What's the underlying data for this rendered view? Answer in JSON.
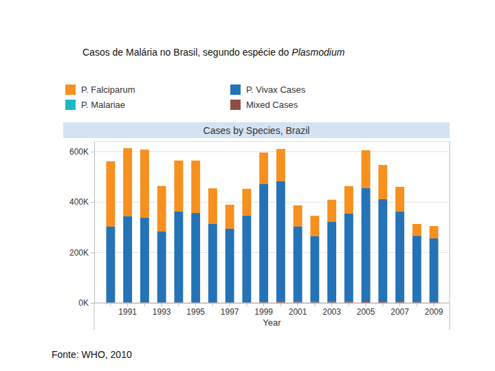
{
  "chart_data": {
    "type": "bar",
    "title": "Casos de Malária no Brasil, segundo espécie do Plasmodium",
    "subtitle": "Cases by Species, Brazil",
    "x_label": "Year",
    "annotations": [
      "Fonte: WHO, 2010"
    ],
    "categories": [
      null,
      "1991",
      null,
      "1993",
      null,
      "1995",
      null,
      "1997",
      null,
      "1999",
      null,
      "2001",
      null,
      "2003",
      null,
      "2005",
      null,
      "2007",
      null,
      "2009"
    ],
    "series": [
      {
        "name": "P. Falciparum",
        "color": "#f7901e",
        "values": [
          259000,
          270000,
          270000,
          180000,
          202000,
          208000,
          141000,
          95000,
          107000,
          125000,
          128000,
          84000,
          81000,
          87000,
          109000,
          150000,
          136000,
          98000,
          47000,
          49000
        ]
      },
      {
        "name": "P. Vivax Cases",
        "color": "#2473b6",
        "values": [
          301000,
          342000,
          336000,
          282000,
          361000,
          355000,
          312000,
          293000,
          344000,
          468000,
          478000,
          299000,
          261000,
          318000,
          350000,
          450000,
          406000,
          358000,
          263000,
          253000
        ]
      },
      {
        "name": "P. Malariae",
        "color": "#1fb8c9",
        "values": [
          300,
          280,
          250,
          220,
          200,
          200,
          180,
          150,
          150,
          150,
          140,
          120,
          100,
          100,
          100,
          90,
          90,
          80,
          70,
          60
        ]
      },
      {
        "name": "Mixed Cases",
        "color": "#8c5144",
        "values": [
          1500,
          1600,
          1800,
          1700,
          1500,
          1400,
          1300,
          1200,
          1500,
          3200,
          4500,
          3800,
          3600,
          4100,
          4300,
          5500,
          5000,
          4000,
          3200,
          2900
        ]
      }
    ],
    "stacked": true,
    "grid": true,
    "legend": "top",
    "ylim": [
      0,
      640000
    ],
    "yticks": [
      {
        "value": 0,
        "label": "0K"
      },
      {
        "value": 200000,
        "label": "200K"
      },
      {
        "value": 400000,
        "label": "400K"
      },
      {
        "value": 600000,
        "label": "600K"
      }
    ]
  }
}
